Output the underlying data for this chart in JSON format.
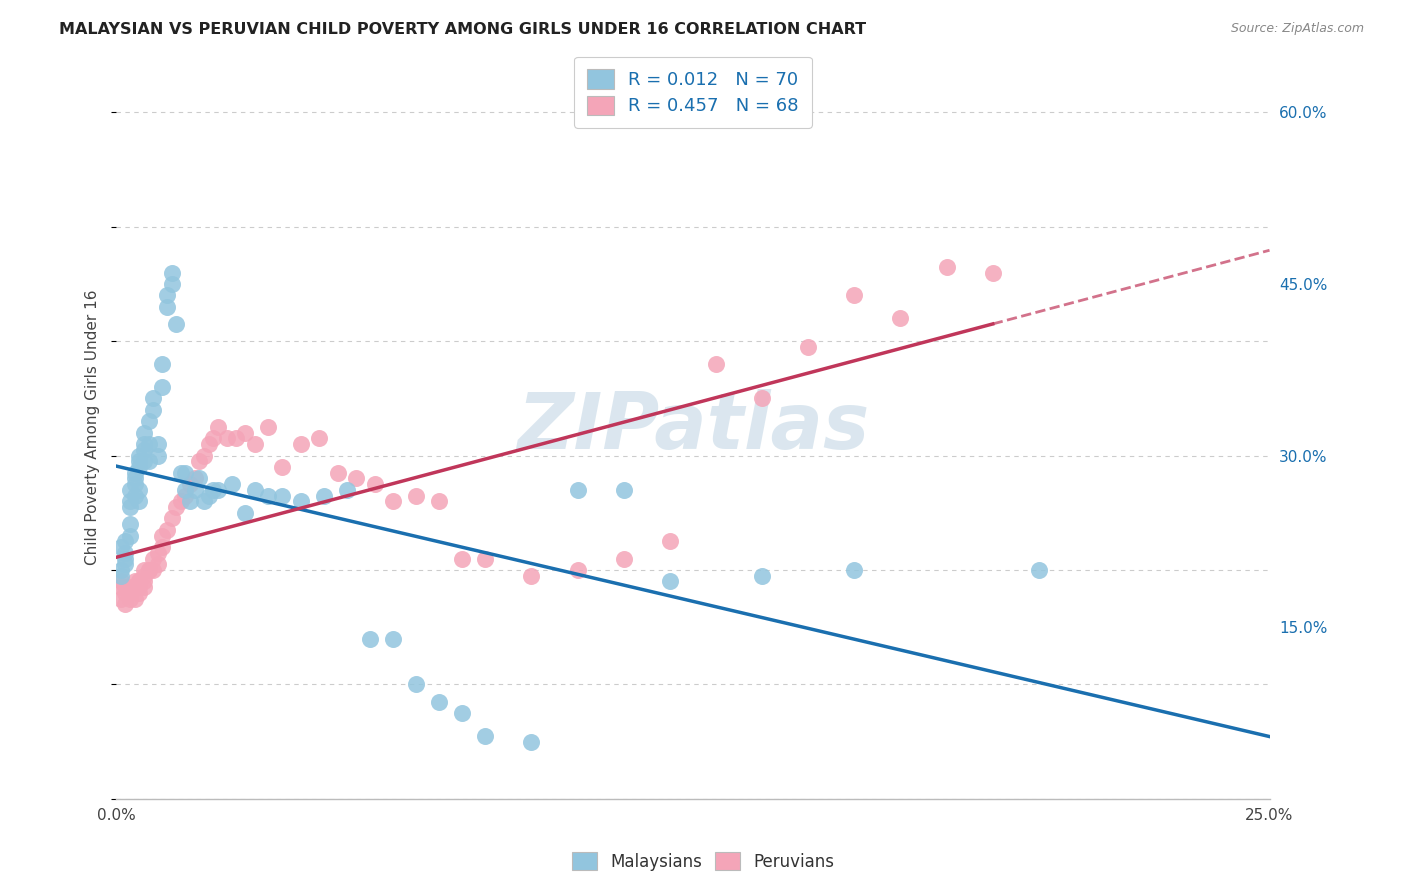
{
  "title": "MALAYSIAN VS PERUVIAN CHILD POVERTY AMONG GIRLS UNDER 16 CORRELATION CHART",
  "source": "Source: ZipAtlas.com",
  "ylabel": "Child Poverty Among Girls Under 16",
  "xlim": [
    0.0,
    0.25
  ],
  "ylim": [
    0.0,
    0.65
  ],
  "xticks": [
    0.0,
    0.05,
    0.1,
    0.15,
    0.2,
    0.25
  ],
  "xticklabels": [
    "0.0%",
    "",
    "",
    "",
    "",
    "25.0%"
  ],
  "yticks": [
    0.15,
    0.3,
    0.45,
    0.6
  ],
  "yticklabels_right": [
    "15.0%",
    "30.0%",
    "45.0%",
    "60.0%"
  ],
  "legend_r1": "0.012",
  "legend_n1": "70",
  "legend_r2": "0.457",
  "legend_n2": "68",
  "color_blue": "#92c5de",
  "color_pink": "#f4a5b8",
  "color_trend_blue": "#1a6faf",
  "color_trend_pink": "#c0365a",
  "watermark": "ZIPatlas",
  "background_color": "#ffffff",
  "grid_color": "#cccccc",
  "malaysian_x": [
    0.001,
    0.001,
    0.001,
    0.002,
    0.002,
    0.002,
    0.002,
    0.003,
    0.003,
    0.003,
    0.003,
    0.003,
    0.004,
    0.004,
    0.004,
    0.004,
    0.005,
    0.005,
    0.005,
    0.005,
    0.005,
    0.006,
    0.006,
    0.006,
    0.006,
    0.007,
    0.007,
    0.007,
    0.008,
    0.008,
    0.009,
    0.009,
    0.01,
    0.01,
    0.011,
    0.011,
    0.012,
    0.012,
    0.013,
    0.014,
    0.015,
    0.015,
    0.016,
    0.017,
    0.018,
    0.019,
    0.02,
    0.021,
    0.022,
    0.025,
    0.028,
    0.03,
    0.033,
    0.036,
    0.04,
    0.045,
    0.05,
    0.055,
    0.06,
    0.065,
    0.07,
    0.075,
    0.08,
    0.09,
    0.1,
    0.11,
    0.12,
    0.14,
    0.16,
    0.2
  ],
  "malaysian_y": [
    0.2,
    0.22,
    0.195,
    0.205,
    0.215,
    0.21,
    0.225,
    0.27,
    0.255,
    0.26,
    0.23,
    0.24,
    0.28,
    0.265,
    0.275,
    0.285,
    0.29,
    0.295,
    0.3,
    0.27,
    0.26,
    0.31,
    0.32,
    0.305,
    0.295,
    0.33,
    0.31,
    0.295,
    0.34,
    0.35,
    0.3,
    0.31,
    0.38,
    0.36,
    0.44,
    0.43,
    0.46,
    0.45,
    0.415,
    0.285,
    0.27,
    0.285,
    0.26,
    0.27,
    0.28,
    0.26,
    0.265,
    0.27,
    0.27,
    0.275,
    0.25,
    0.27,
    0.265,
    0.265,
    0.26,
    0.265,
    0.27,
    0.14,
    0.14,
    0.1,
    0.085,
    0.075,
    0.055,
    0.05,
    0.27,
    0.27,
    0.19,
    0.195,
    0.2,
    0.2
  ],
  "peruvian_x": [
    0.001,
    0.001,
    0.001,
    0.002,
    0.002,
    0.002,
    0.003,
    0.003,
    0.003,
    0.004,
    0.004,
    0.004,
    0.004,
    0.005,
    0.005,
    0.005,
    0.005,
    0.006,
    0.006,
    0.006,
    0.006,
    0.007,
    0.007,
    0.008,
    0.008,
    0.009,
    0.009,
    0.01,
    0.01,
    0.011,
    0.012,
    0.013,
    0.014,
    0.015,
    0.016,
    0.017,
    0.018,
    0.019,
    0.02,
    0.021,
    0.022,
    0.024,
    0.026,
    0.028,
    0.03,
    0.033,
    0.036,
    0.04,
    0.044,
    0.048,
    0.052,
    0.056,
    0.06,
    0.065,
    0.07,
    0.075,
    0.08,
    0.09,
    0.1,
    0.11,
    0.12,
    0.13,
    0.14,
    0.15,
    0.16,
    0.17,
    0.18,
    0.19
  ],
  "peruvian_y": [
    0.19,
    0.185,
    0.175,
    0.185,
    0.18,
    0.17,
    0.18,
    0.175,
    0.185,
    0.185,
    0.185,
    0.175,
    0.19,
    0.19,
    0.185,
    0.18,
    0.19,
    0.195,
    0.2,
    0.185,
    0.19,
    0.2,
    0.2,
    0.2,
    0.21,
    0.205,
    0.215,
    0.22,
    0.23,
    0.235,
    0.245,
    0.255,
    0.26,
    0.265,
    0.275,
    0.28,
    0.295,
    0.3,
    0.31,
    0.315,
    0.325,
    0.315,
    0.315,
    0.32,
    0.31,
    0.325,
    0.29,
    0.31,
    0.315,
    0.285,
    0.28,
    0.275,
    0.26,
    0.265,
    0.26,
    0.21,
    0.21,
    0.195,
    0.2,
    0.21,
    0.225,
    0.38,
    0.35,
    0.395,
    0.44,
    0.42,
    0.465,
    0.46
  ]
}
